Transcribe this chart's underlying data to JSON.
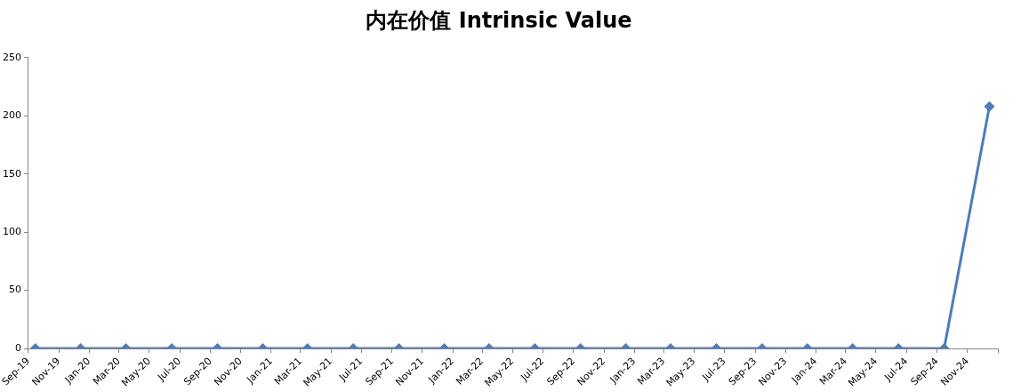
{
  "chart_data": {
    "type": "line",
    "title": "内在价值 Intrinsic Value",
    "x": [
      "2019-09-15",
      "2019-12-15",
      "2020-03-15",
      "2020-06-15",
      "2020-09-15",
      "2020-12-15",
      "2021-03-15",
      "2021-06-15",
      "2021-09-15",
      "2021-12-15",
      "2022-03-15",
      "2022-06-15",
      "2022-09-15",
      "2022-12-15",
      "2023-03-15",
      "2023-06-15",
      "2023-09-15",
      "2023-12-15",
      "2024-03-15",
      "2024-06-15",
      "2024-09-15",
      "2024-12-15"
    ],
    "series": [
      {
        "color": "#4a7ebb",
        "values": [
          0,
          0,
          0,
          0,
          0,
          0,
          0,
          0,
          0,
          0,
          0,
          0,
          0,
          0,
          0,
          0,
          0,
          0,
          0,
          0,
          0,
          208
        ]
      }
    ],
    "xlim": [
      "2019-09",
      "2025-01"
    ],
    "xticks": [
      {
        "value": "2019-09",
        "label": "Sep-19"
      },
      {
        "value": "2019-11",
        "label": "Nov-19"
      },
      {
        "value": "2020-01",
        "label": "Jan-20"
      },
      {
        "value": "2020-03",
        "label": "Mar-20"
      },
      {
        "value": "2020-05",
        "label": "May-20"
      },
      {
        "value": "2020-07",
        "label": "Jul-20"
      },
      {
        "value": "2020-09",
        "label": "Sep-20"
      },
      {
        "value": "2020-11",
        "label": "Nov-20"
      },
      {
        "value": "2021-01",
        "label": "Jan-21"
      },
      {
        "value": "2021-03",
        "label": "Mar-21"
      },
      {
        "value": "2021-05",
        "label": "May-21"
      },
      {
        "value": "2021-07",
        "label": "Jul-21"
      },
      {
        "value": "2021-09",
        "label": "Sep-21"
      },
      {
        "value": "2021-11",
        "label": "Nov-21"
      },
      {
        "value": "2022-01",
        "label": "Jan-22"
      },
      {
        "value": "2022-03",
        "label": "Mar-22"
      },
      {
        "value": "2022-05",
        "label": "May-22"
      },
      {
        "value": "2022-07",
        "label": "Jul-22"
      },
      {
        "value": "2022-09",
        "label": "Sep-22"
      },
      {
        "value": "2022-11",
        "label": "Nov-22"
      },
      {
        "value": "2023-01",
        "label": "Jan-23"
      },
      {
        "value": "2023-03",
        "label": "Mar-23"
      },
      {
        "value": "2023-05",
        "label": "May-23"
      },
      {
        "value": "2023-07",
        "label": "Jul-23"
      },
      {
        "value": "2023-09",
        "label": "Sep-23"
      },
      {
        "value": "2023-11",
        "label": "Nov-23"
      },
      {
        "value": "2024-01",
        "label": "Jan-24"
      },
      {
        "value": "2024-03",
        "label": "Mar-24"
      },
      {
        "value": "2024-05",
        "label": "May-24"
      },
      {
        "value": "2024-07",
        "label": "Jul-24"
      },
      {
        "value": "2024-09",
        "label": "Sep-24"
      },
      {
        "value": "2024-11",
        "label": "Nov-24"
      },
      {
        "value": "2025-01",
        "label": null
      }
    ],
    "ylim": [
      0,
      250
    ],
    "yticks": [
      0,
      50,
      100,
      150,
      200,
      250
    ],
    "grid": false,
    "legend": false,
    "marker": "diamond",
    "line_style": "solid"
  }
}
